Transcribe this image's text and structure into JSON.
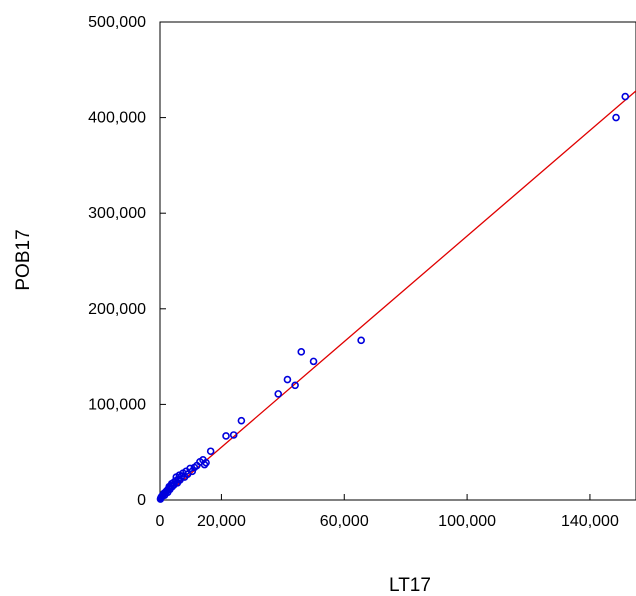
{
  "chart_data": {
    "type": "scatter",
    "title": "",
    "xlabel": "LT17",
    "ylabel": "POB17",
    "xlim": [
      0,
      155000
    ],
    "ylim": [
      0,
      500000
    ],
    "x_ticks": [
      0,
      20000,
      60000,
      100000,
      140000
    ],
    "x_tick_labels": [
      "0",
      "20,000",
      "60,000",
      "100,000",
      "140,000"
    ],
    "y_ticks": [
      0,
      100000,
      200000,
      300000,
      400000,
      500000
    ],
    "y_tick_labels": [
      "0",
      "100,000",
      "200,000",
      "300,000",
      "400,000",
      "500,000"
    ],
    "grid": false,
    "colors": {
      "points": "#0000dd",
      "fit_line": "#e00000"
    },
    "series": [
      {
        "kind": "points",
        "x": [
          150,
          250,
          400,
          600,
          900,
          1100,
          1300,
          1500,
          1800,
          2000,
          2300,
          2500,
          2800,
          3000,
          3200,
          3500,
          3800,
          4000,
          4300,
          4600,
          5000,
          5300,
          5700,
          6000,
          6300,
          6500,
          7000,
          7500,
          8000,
          8500,
          9000,
          9800,
          10500,
          11200,
          12000,
          13000,
          14000,
          14500,
          15000,
          16500,
          21500,
          24000,
          26500,
          38500,
          41500,
          44000,
          46000,
          50000,
          65500,
          148500,
          151500
        ],
        "y": [
          1000,
          2000,
          3000,
          4000,
          5000,
          6000,
          7000,
          5000,
          8000,
          9000,
          10000,
          8000,
          12000,
          14000,
          11000,
          15000,
          17000,
          14000,
          18000,
          16000,
          20000,
          24000,
          18000,
          22000,
          26000,
          21000,
          25000,
          28000,
          24000,
          30000,
          27000,
          33000,
          30000,
          34000,
          36000,
          40000,
          42000,
          37000,
          39000,
          51000,
          67000,
          68000,
          83000,
          111000,
          126000,
          120000,
          155000,
          145000,
          167000,
          400000,
          422000
        ]
      },
      {
        "kind": "fit_line",
        "x": [
          0,
          155000
        ],
        "y": [
          -4000,
          428000
        ]
      }
    ]
  }
}
